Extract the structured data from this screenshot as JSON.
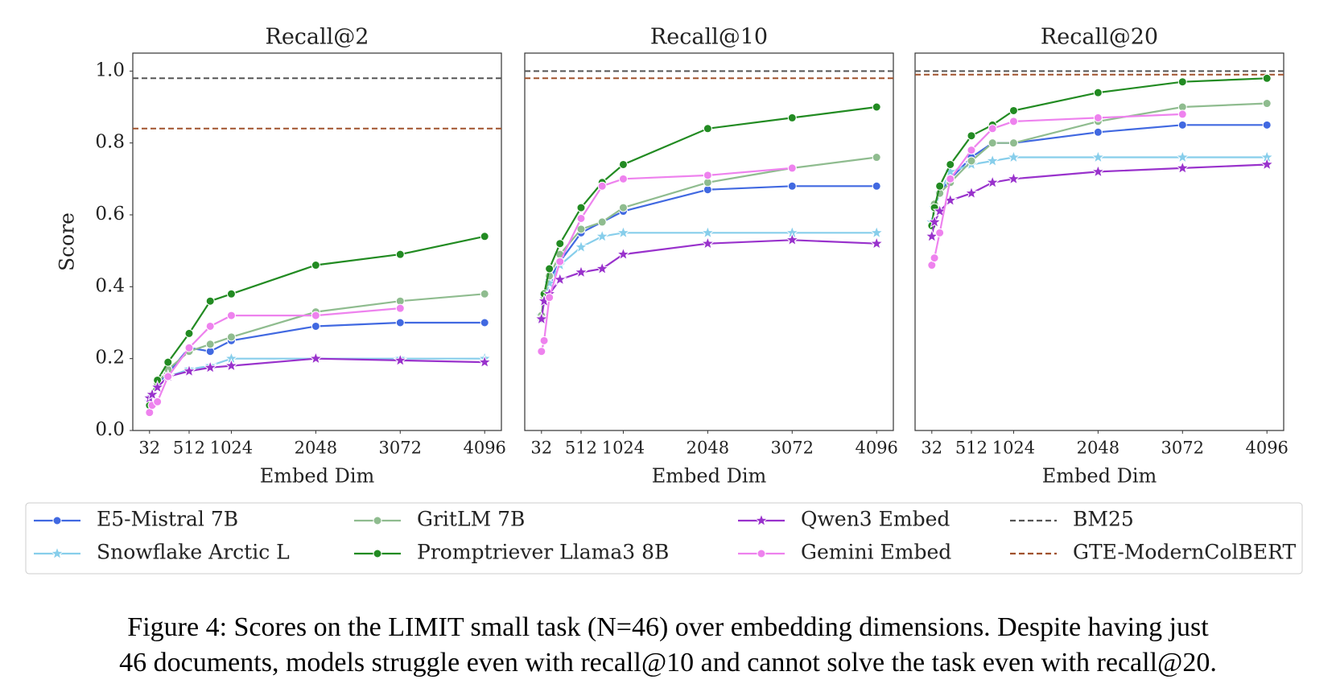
{
  "chart_data": [
    {
      "type": "line",
      "title": "Recall@2",
      "xlabel": "Embed Dim",
      "ylabel": "Score",
      "x": [
        32,
        64,
        128,
        256,
        512,
        768,
        1024,
        2048,
        3072,
        4096
      ],
      "xlim": [
        -171,
        4299
      ],
      "xticks": [
        32,
        512,
        1024,
        2048,
        3072,
        4096
      ],
      "ylim": [
        0,
        1.05
      ],
      "yticks": [
        {
          "value": 0,
          "label": "0.0"
        },
        0.2,
        0.4,
        0.6,
        0.8,
        {
          "value": 1,
          "label": "1.0"
        }
      ],
      "series": [
        {
          "name": "E5-Mistral 7B",
          "color": "#4169e1",
          "marker": "circle",
          "values": [
            0.09,
            0.1,
            0.13,
            0.16,
            0.23,
            0.22,
            0.25,
            0.29,
            0.3,
            0.3
          ]
        },
        {
          "name": "Snowflake Arctic L",
          "color": "#87ceeb",
          "marker": "star",
          "values": [
            0.08,
            0.1,
            0.12,
            0.15,
            0.17,
            0.18,
            0.2,
            0.2,
            0.2,
            0.2
          ]
        },
        {
          "name": "GritLM 7B",
          "color": "#8fbc8f",
          "marker": "circle",
          "values": [
            0.08,
            0.1,
            0.13,
            0.17,
            0.22,
            0.24,
            0.26,
            0.33,
            0.36,
            0.38
          ]
        },
        {
          "name": "Promptriever Llama3 8B",
          "color": "#228b22",
          "marker": "circle",
          "values": [
            0.07,
            0.1,
            0.14,
            0.19,
            0.27,
            0.36,
            0.38,
            0.46,
            0.49,
            0.54
          ]
        },
        {
          "name": "Qwen3 Embed",
          "color": "#9932cc",
          "marker": "star",
          "values": [
            0.09,
            0.1,
            0.12,
            0.15,
            0.165,
            0.175,
            0.18,
            0.2,
            0.195,
            0.19
          ]
        },
        {
          "name": "Gemini Embed",
          "color": "#ee82ee",
          "marker": "circle",
          "values": [
            0.05,
            0.07,
            0.08,
            0.15,
            0.23,
            0.29,
            0.32,
            0.32,
            0.34,
            null
          ]
        }
      ],
      "reference_lines": [
        {
          "name": "BM25",
          "color": "#555555",
          "value": 0.98
        },
        {
          "name": "GTE-ModernColBERT",
          "color": "#a0522d",
          "value": 0.84
        }
      ]
    },
    {
      "type": "line",
      "title": "Recall@10",
      "xlabel": "Embed Dim",
      "x": [
        32,
        64,
        128,
        256,
        512,
        768,
        1024,
        2048,
        3072,
        4096
      ],
      "xlim": [
        -171,
        4299
      ],
      "xticks": [
        32,
        512,
        1024,
        2048,
        3072,
        4096
      ],
      "ylim": [
        0,
        1.05
      ],
      "series": [
        {
          "name": "E5-Mistral 7B",
          "color": "#4169e1",
          "marker": "circle",
          "values": [
            0.31,
            0.37,
            0.42,
            0.47,
            0.55,
            0.58,
            0.61,
            0.67,
            0.68,
            0.68
          ]
        },
        {
          "name": "Snowflake Arctic L",
          "color": "#87ceeb",
          "marker": "star",
          "values": [
            0.32,
            0.36,
            0.41,
            0.46,
            0.51,
            0.54,
            0.55,
            0.55,
            0.55,
            0.55
          ]
        },
        {
          "name": "GritLM 7B",
          "color": "#8fbc8f",
          "marker": "circle",
          "values": [
            0.32,
            0.37,
            0.43,
            0.49,
            0.56,
            0.58,
            0.62,
            0.69,
            0.73,
            0.76
          ]
        },
        {
          "name": "Promptriever Llama3 8B",
          "color": "#228b22",
          "marker": "circle",
          "values": [
            0.31,
            0.38,
            0.45,
            0.52,
            0.62,
            0.69,
            0.74,
            0.84,
            0.87,
            0.9
          ]
        },
        {
          "name": "Qwen3 Embed",
          "color": "#9932cc",
          "marker": "star",
          "values": [
            0.31,
            0.36,
            0.38,
            0.42,
            0.44,
            0.45,
            0.49,
            0.52,
            0.53,
            0.52
          ]
        },
        {
          "name": "Gemini Embed",
          "color": "#ee82ee",
          "marker": "circle",
          "values": [
            0.22,
            0.25,
            0.37,
            0.47,
            0.59,
            0.68,
            0.7,
            0.71,
            0.73,
            null
          ]
        }
      ],
      "reference_lines": [
        {
          "name": "BM25",
          "color": "#555555",
          "value": 1.0
        },
        {
          "name": "GTE-ModernColBERT",
          "color": "#a0522d",
          "value": 0.98
        }
      ]
    },
    {
      "type": "line",
      "title": "Recall@20",
      "xlabel": "Embed Dim",
      "x": [
        32,
        64,
        128,
        256,
        512,
        768,
        1024,
        2048,
        3072,
        4096
      ],
      "xlim": [
        -171,
        4299
      ],
      "xticks": [
        32,
        512,
        1024,
        2048,
        3072,
        4096
      ],
      "ylim": [
        0,
        1.05
      ],
      "series": [
        {
          "name": "E5-Mistral 7B",
          "color": "#4169e1",
          "marker": "circle",
          "values": [
            0.57,
            0.62,
            0.66,
            0.7,
            0.76,
            0.8,
            0.8,
            0.83,
            0.85,
            0.85
          ]
        },
        {
          "name": "Snowflake Arctic L",
          "color": "#87ceeb",
          "marker": "star",
          "values": [
            0.58,
            0.62,
            0.66,
            0.72,
            0.74,
            0.75,
            0.76,
            0.76,
            0.76,
            0.76
          ]
        },
        {
          "name": "GritLM 7B",
          "color": "#8fbc8f",
          "marker": "circle",
          "values": [
            0.57,
            0.63,
            0.66,
            0.69,
            0.75,
            0.8,
            0.8,
            0.86,
            0.9,
            0.91
          ]
        },
        {
          "name": "Promptriever Llama3 8B",
          "color": "#228b22",
          "marker": "circle",
          "values": [
            0.57,
            0.62,
            0.68,
            0.74,
            0.82,
            0.85,
            0.89,
            0.94,
            0.97,
            0.98
          ]
        },
        {
          "name": "Qwen3 Embed",
          "color": "#9932cc",
          "marker": "star",
          "values": [
            0.54,
            0.58,
            0.61,
            0.64,
            0.66,
            0.69,
            0.7,
            0.72,
            0.73,
            0.74
          ]
        },
        {
          "name": "Gemini Embed",
          "color": "#ee82ee",
          "marker": "circle",
          "values": [
            0.46,
            0.48,
            0.55,
            0.7,
            0.78,
            0.84,
            0.86,
            0.87,
            0.88,
            null
          ]
        }
      ],
      "reference_lines": [
        {
          "name": "BM25",
          "color": "#555555",
          "value": 1.0
        },
        {
          "name": "GTE-ModernColBERT",
          "color": "#a0522d",
          "value": 0.99
        }
      ]
    }
  ],
  "caption": [
    "Figure 4: Scores on the LIMIT small task (N=46) over embedding dimensions. Despite having just",
    "46 documents, models struggle even with recall@10 and cannot solve the task even with recall@20."
  ]
}
